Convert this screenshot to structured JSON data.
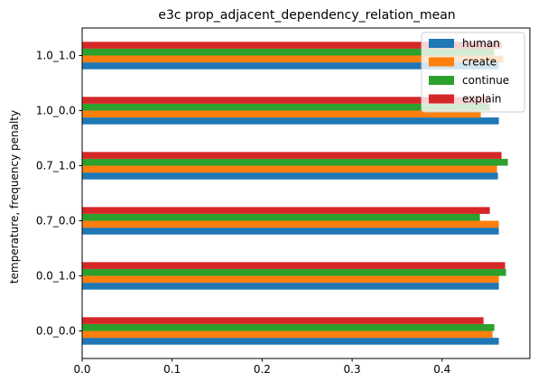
{
  "chart_data": {
    "type": "bar",
    "orientation": "horizontal",
    "title": "e3c prop_adjacent_dependency_relation_mean",
    "xlabel": "",
    "ylabel": "temperature, frequency penalty",
    "categories": [
      "0.0_0.0",
      "0.0_1.0",
      "0.7_0.0",
      "0.7_1.0",
      "1.0_0.0",
      "1.0_1.0"
    ],
    "series": [
      {
        "name": "human",
        "color": "#1f77b4",
        "values": [
          0.463,
          0.463,
          0.463,
          0.462,
          0.463,
          0.463
        ]
      },
      {
        "name": "create",
        "color": "#ff7f0e",
        "values": [
          0.456,
          0.463,
          0.463,
          0.461,
          0.443,
          0.468
        ]
      },
      {
        "name": "continue",
        "color": "#2ca02c",
        "values": [
          0.458,
          0.471,
          0.442,
          0.473,
          0.453,
          0.458
        ]
      },
      {
        "name": "explain",
        "color": "#d62728",
        "values": [
          0.446,
          0.47,
          0.453,
          0.466,
          0.451,
          0.466
        ]
      }
    ],
    "xlim": [
      0,
      0.4975
    ],
    "xticks": [
      "0.0",
      "0.1",
      "0.2",
      "0.3",
      "0.4"
    ],
    "grid": false,
    "legend_position": "top-right"
  }
}
